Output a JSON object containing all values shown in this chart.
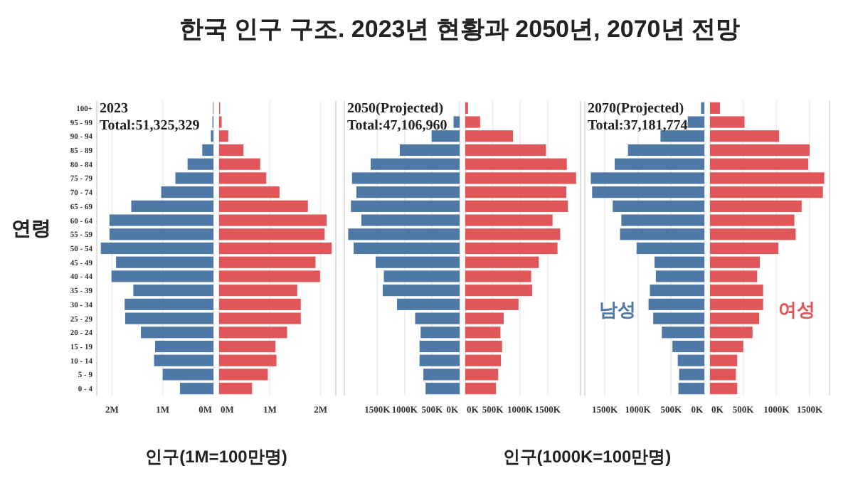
{
  "chart_data": [
    {
      "type": "bar",
      "orientation": "horizontal",
      "title": "한국 인구 구조. 2023년 현황과 2050년, 2070년 전망",
      "ylabel": "연령",
      "annotations": [
        "2023",
        "Total:51,325,329"
      ],
      "grid": "x",
      "categories": [
        "100+",
        "95 - 99",
        "90 - 94",
        "85 - 89",
        "80 - 84",
        "75 - 79",
        "70 - 74",
        "65 - 69",
        "60 - 64",
        "55 - 59",
        "50 - 54",
        "45 - 49",
        "40 - 44",
        "35 - 39",
        "30 - 34",
        "25 - 29",
        "20 - 24",
        "15 - 19",
        "10 - 14",
        "5 - 9",
        "0 - 4"
      ],
      "xlim": [
        2.3,
        0
      ],
      "xticks": [
        {
          "value": 2,
          "label": "2M"
        },
        {
          "value": 1,
          "label": "1M"
        },
        {
          "value": 0,
          "label": "0M"
        }
      ],
      "series": [
        {
          "color": "#4e79a7",
          "values": [
            0.01,
            0.02,
            0.05,
            0.22,
            0.51,
            0.75,
            1.03,
            1.62,
            2.05,
            2.05,
            2.22,
            1.92,
            2.01,
            1.58,
            1.75,
            1.74,
            1.43,
            1.15,
            1.17,
            1.0,
            0.66
          ]
        }
      ]
    },
    {
      "type": "bar",
      "orientation": "horizontal",
      "xlabel": "인구(1M=100만명)",
      "grid": "x",
      "tick_labels": "x",
      "xlim": [
        0,
        2.3
      ],
      "xticks": [
        {
          "value": 0,
          "label": "0M"
        },
        {
          "value": 1,
          "label": "1M"
        },
        {
          "value": 2,
          "label": "2M"
        }
      ],
      "series": [
        {
          "color": "#e15759",
          "values": [
            0.02,
            0.05,
            0.18,
            0.48,
            0.81,
            0.93,
            1.19,
            1.75,
            2.12,
            2.08,
            2.22,
            1.9,
            1.99,
            1.54,
            1.61,
            1.61,
            1.34,
            1.11,
            1.13,
            0.96,
            0.65
          ]
        }
      ]
    },
    {
      "type": "bar",
      "orientation": "horizontal",
      "annotations": [
        "2050(Projected)",
        "Total:47,106,960"
      ],
      "grid": "x",
      "tick_labels": "x",
      "xlim": [
        2100,
        0
      ],
      "xticks": [
        {
          "value": 1500,
          "label": "1500K"
        },
        {
          "value": 1000,
          "label": "1000K"
        },
        {
          "value": 500,
          "label": "500K"
        },
        {
          "value": 0,
          "label": "0K"
        }
      ],
      "series": [
        {
          "color": "#4e79a7",
          "values": [
            0,
            110,
            510,
            1090,
            1620,
            1960,
            1880,
            1980,
            1790,
            2030,
            1930,
            1530,
            1380,
            1400,
            1140,
            810,
            710,
            730,
            730,
            660,
            620
          ]
        }
      ]
    },
    {
      "type": "bar",
      "orientation": "horizontal",
      "xlabel": "인구(1000K=100만명)",
      "grid": "x",
      "tick_labels": "x",
      "xlim": [
        0,
        2100
      ],
      "xticks": [
        {
          "value": 0,
          "label": "0K"
        },
        {
          "value": 500,
          "label": "500K"
        },
        {
          "value": 1000,
          "label": "1000K"
        },
        {
          "value": 1500,
          "label": "1500K"
        }
      ],
      "series": [
        {
          "color": "#e15759",
          "values": [
            50,
            270,
            870,
            1470,
            1850,
            2020,
            1840,
            1870,
            1590,
            1730,
            1680,
            1340,
            1200,
            1220,
            970,
            700,
            640,
            670,
            650,
            600,
            560
          ]
        }
      ]
    },
    {
      "type": "bar",
      "orientation": "horizontal",
      "annotations": [
        "2070(Projected)",
        "Total:37,181,774"
      ],
      "grid": "x",
      "tick_labels": "x",
      "xlim": [
        1800,
        0
      ],
      "xticks": [
        {
          "value": 1500,
          "label": "1500K"
        },
        {
          "value": 1000,
          "label": "1000K"
        },
        {
          "value": 500,
          "label": "500K"
        },
        {
          "value": 0,
          "label": "0K"
        }
      ],
      "series": [
        {
          "name": "남성",
          "color": "#4e79a7",
          "values": [
            50,
            250,
            660,
            1150,
            1350,
            1710,
            1690,
            1380,
            1250,
            1270,
            1020,
            750,
            730,
            820,
            840,
            770,
            640,
            480,
            400,
            380,
            390
          ]
        }
      ]
    },
    {
      "type": "bar",
      "orientation": "horizontal",
      "grid": "x",
      "tick_labels": "x",
      "xlim": [
        0,
        1800
      ],
      "xticks": [
        {
          "value": 0,
          "label": "0K"
        },
        {
          "value": 500,
          "label": "500K"
        },
        {
          "value": 1000,
          "label": "1000K"
        },
        {
          "value": 1500,
          "label": "1500K"
        }
      ],
      "series": [
        {
          "name": "여성",
          "color": "#e15759",
          "values": [
            150,
            520,
            1040,
            1500,
            1480,
            1720,
            1700,
            1380,
            1270,
            1290,
            1030,
            750,
            710,
            800,
            800,
            740,
            640,
            500,
            410,
            390,
            410
          ]
        }
      ]
    }
  ]
}
